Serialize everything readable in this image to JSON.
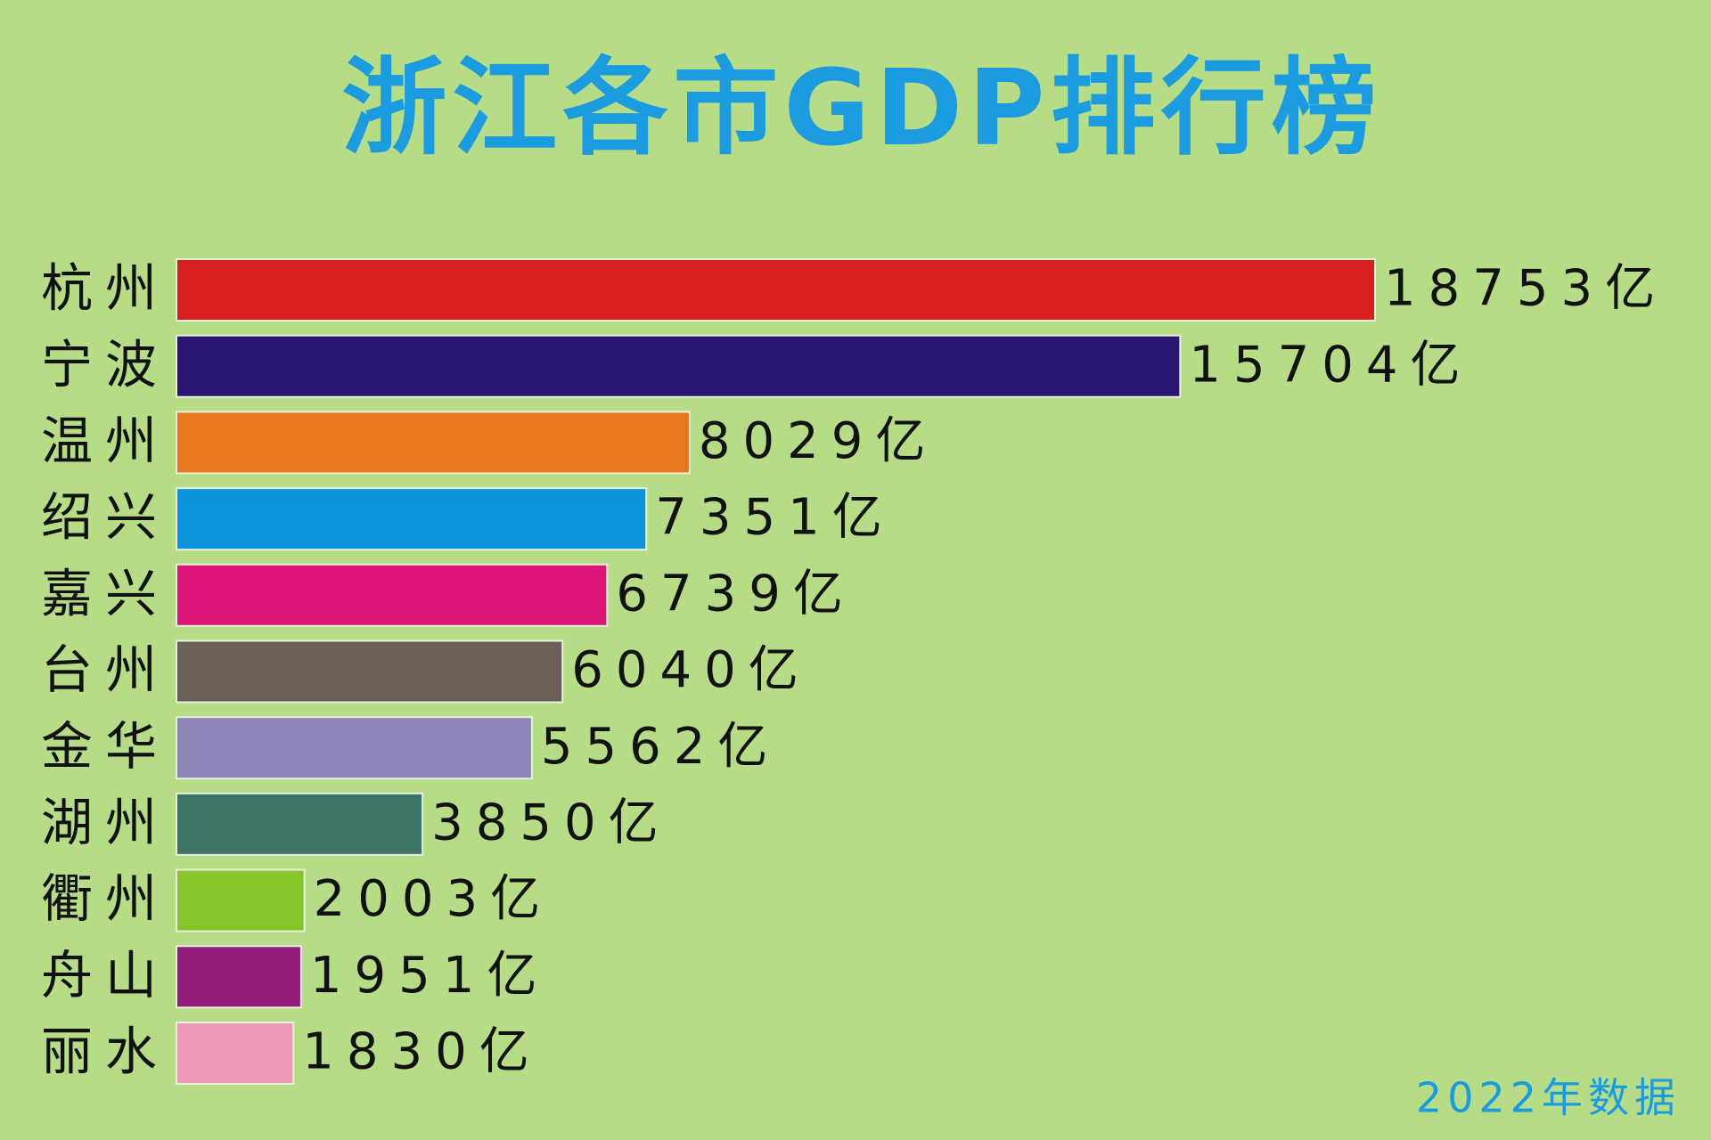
{
  "chart_data": {
    "type": "bar",
    "orientation": "horizontal",
    "title": "浙江各市GDP排行榜",
    "categories": [
      "杭州",
      "宁波",
      "温州",
      "绍兴",
      "嘉兴",
      "台州",
      "金华",
      "湖州",
      "衢州",
      "舟山",
      "丽水"
    ],
    "values": [
      18753,
      15704,
      8029,
      7351,
      6739,
      6040,
      5562,
      3850,
      2003,
      1951,
      1830
    ],
    "value_labels": [
      "18753亿",
      "15704亿",
      "8029亿",
      "7351亿",
      "6739亿",
      "6040亿",
      "5562亿",
      "3850亿",
      "2003亿",
      "1951亿",
      "1830亿"
    ],
    "colors": [
      "#d8201f",
      "#2b1772",
      "#e5771c",
      "#0b95dc",
      "#dd1579",
      "#6c5f58",
      "#8c86b8",
      "#3d7468",
      "#89c42a",
      "#931c7c",
      "#f09bbc"
    ],
    "note": "2022年数据"
  }
}
